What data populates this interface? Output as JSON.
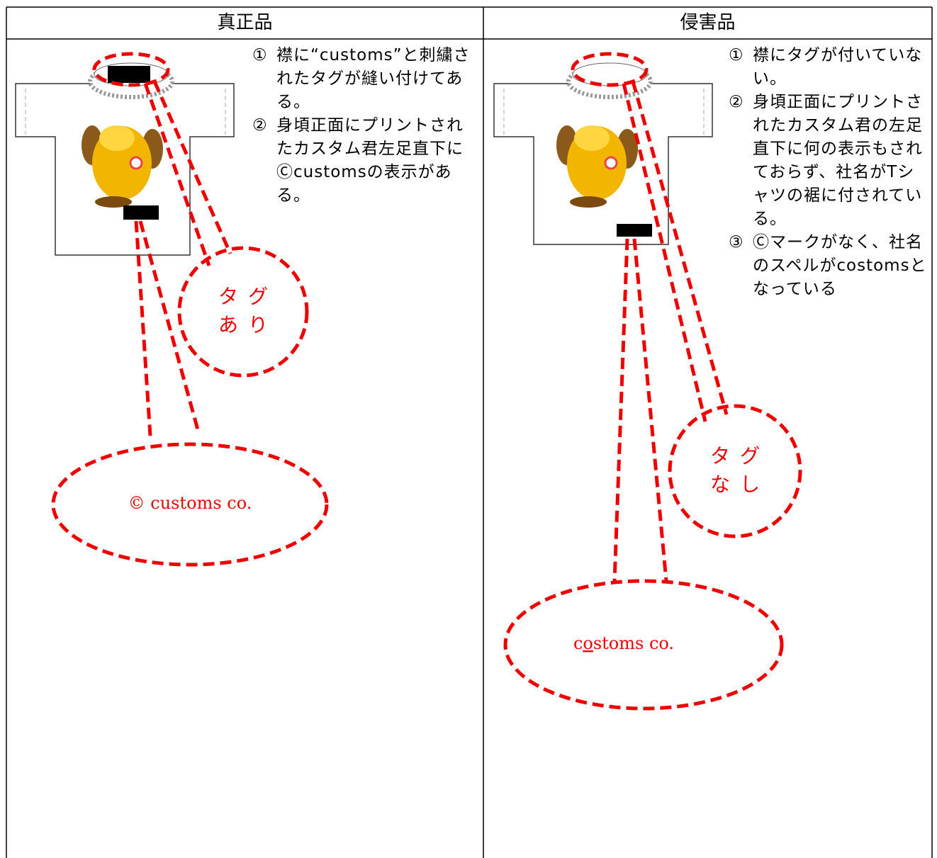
{
  "table": {
    "headers": [
      "真正品",
      "侵害品"
    ],
    "columns": [
      {
        "notes": [
          {
            "marker": "①",
            "text": "襟に“customs”と刺繍されたタグが縫い付けてある。"
          },
          {
            "marker": "②",
            "text": "身頃正面にプリントされたカスタム君左足直下にⒸcustomsの表示がある。"
          }
        ],
        "tag_callout": [
          "タグ",
          "あり"
        ],
        "print_callout": [
          "© customs co."
        ]
      },
      {
        "notes": [
          {
            "marker": "①",
            "text": "襟にタグが付いていない。"
          },
          {
            "marker": "②",
            "text": "身頃正面にプリントされたカスタム君の左足直下に何の表示もされておらず、社名がTシャツの裾に付されている。"
          },
          {
            "marker": "③",
            "text": "Ⓒマークがなく、社名のスペルがcostomsとなっている"
          }
        ],
        "tag_callout": [
          "タグ",
          "なし"
        ],
        "print_callout": [
          "c",
          "o",
          "stoms co."
        ]
      }
    ]
  }
}
